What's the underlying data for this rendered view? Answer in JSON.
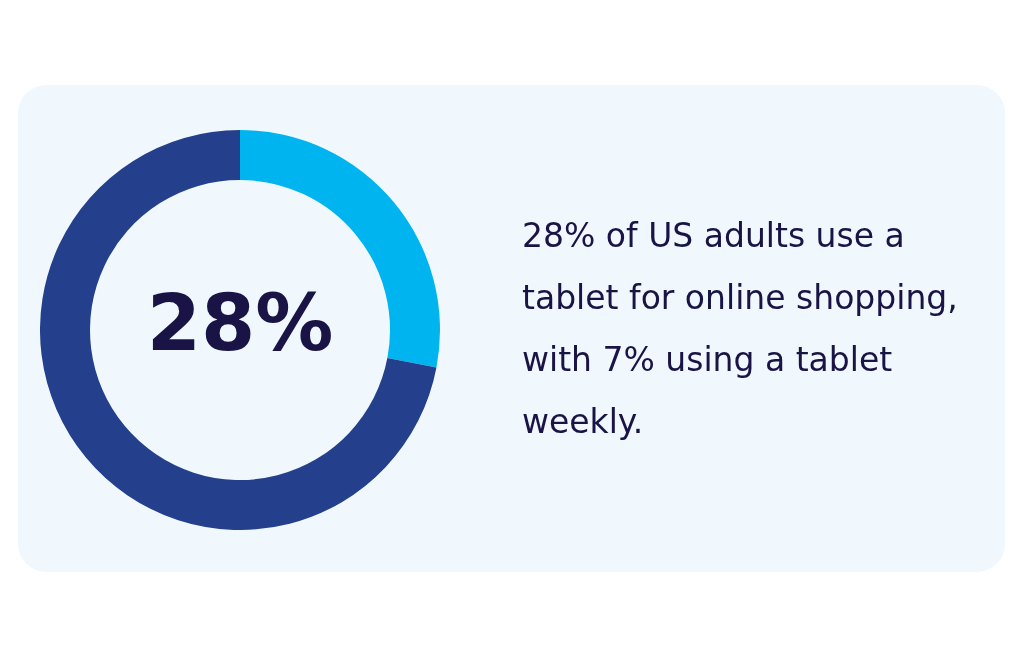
{
  "chart_data": {
    "type": "donut",
    "categories": [
      null,
      null
    ],
    "values": [
      28,
      72
    ],
    "colors": [
      "#00b5ef",
      "#243f8c"
    ],
    "value_labels": [
      "28%",
      null
    ],
    "annotations": [
      "28% of US adults use a tablet for online shopping, with 7% using a tablet weekly."
    ],
    "legend": false
  }
}
